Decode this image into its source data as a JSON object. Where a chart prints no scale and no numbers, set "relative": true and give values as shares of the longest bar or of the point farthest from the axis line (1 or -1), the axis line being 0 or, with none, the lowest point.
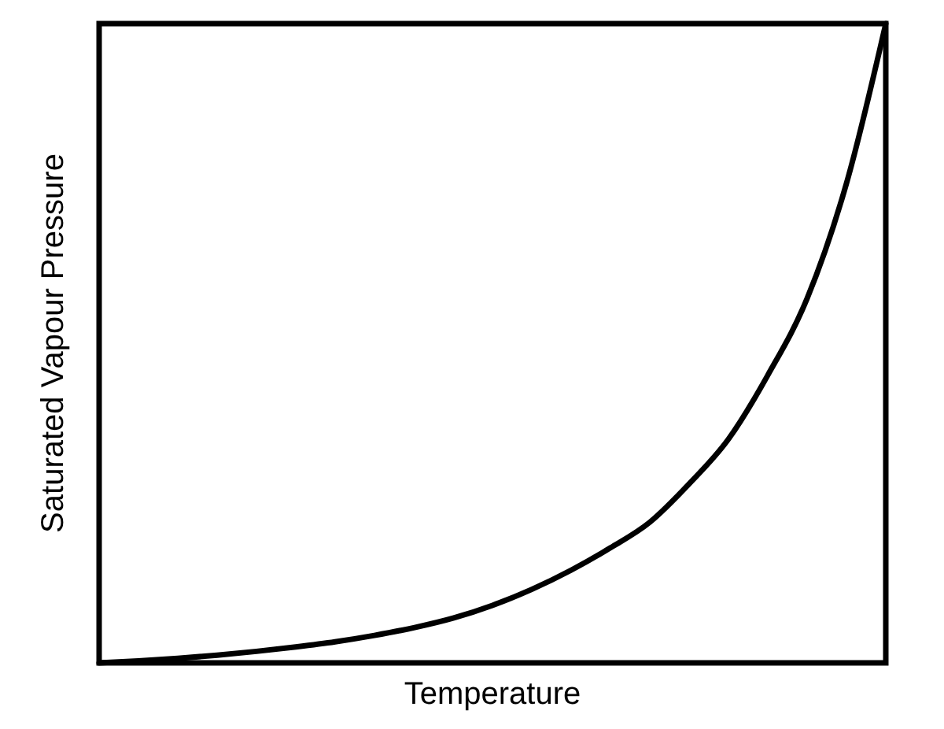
{
  "chart_data": {
    "type": "line",
    "xlabel": "Temperature",
    "ylabel": "Saturated Vapour Pressure",
    "relative": true,
    "tick_labels": false,
    "categories": [
      null,
      null,
      null,
      null,
      null,
      null,
      null,
      null,
      null,
      null,
      null,
      null,
      null,
      null,
      null,
      null,
      null,
      null,
      null,
      null,
      null
    ],
    "series": [
      {
        "color": "#000000",
        "values": [
          0,
          0.003,
          0.007,
          0.012,
          0.018,
          0.025,
          0.033,
          0.043,
          0.055,
          0.07,
          0.09,
          0.115,
          0.145,
          0.18,
          0.22,
          0.28,
          0.35,
          0.45,
          0.57,
          0.75,
          1
        ]
      }
    ],
    "marker": "none",
    "line_style": "solid"
  }
}
